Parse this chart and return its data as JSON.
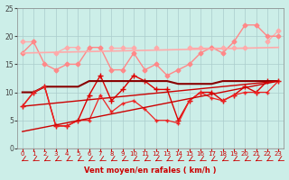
{
  "bg_color": "#cceee8",
  "grid_color": "#aacccc",
  "xlabel": "Vent moyen/en rafales ( km/h )",
  "xlabel_color": "#cc0000",
  "xlim": [
    -0.5,
    23.5
  ],
  "ylim": [
    0,
    25
  ],
  "xticks": [
    0,
    1,
    2,
    3,
    4,
    5,
    6,
    7,
    8,
    9,
    10,
    11,
    12,
    13,
    14,
    15,
    16,
    17,
    18,
    19,
    20,
    21,
    22,
    23
  ],
  "yticks": [
    0,
    5,
    10,
    15,
    20,
    25
  ],
  "series": [
    {
      "x": [
        0,
        1,
        2,
        3,
        4,
        5,
        6,
        7,
        8,
        9,
        10,
        11,
        12,
        13,
        14,
        15,
        16,
        17,
        18,
        19,
        20,
        21,
        22,
        23
      ],
      "y": [
        19,
        19,
        null,
        17,
        18,
        18,
        null,
        null,
        18,
        18,
        18,
        null,
        18,
        null,
        null,
        18,
        18,
        18,
        18,
        18,
        18,
        null,
        19,
        21
      ],
      "color": "#ffaaaa",
      "lw": 0.9,
      "marker": "D",
      "ms": 2.5
    },
    {
      "x": [
        0,
        1,
        2,
        3,
        4,
        5,
        6,
        7,
        8,
        9,
        10,
        11,
        12,
        13,
        14,
        15,
        16,
        17,
        18,
        19,
        20,
        21,
        22,
        23
      ],
      "y": [
        17,
        19,
        15,
        14,
        15,
        15,
        18,
        18,
        14,
        14,
        17,
        14,
        15,
        13,
        14,
        15,
        17,
        18,
        17,
        19,
        22,
        22,
        20,
        20
      ],
      "color": "#ff8888",
      "lw": 1.0,
      "marker": "D",
      "ms": 2.5
    },
    {
      "x": [
        0,
        23
      ],
      "y": [
        17,
        18
      ],
      "color": "#ffaaaa",
      "lw": 1.2,
      "marker": null,
      "ms": 0
    },
    {
      "x": [
        0,
        1,
        2,
        3,
        4,
        5,
        6,
        7,
        8,
        9,
        10,
        11,
        12,
        13,
        14,
        15,
        16,
        17,
        18,
        19,
        20,
        21,
        22,
        23
      ],
      "y": [
        7.5,
        10,
        11,
        4,
        4,
        5,
        9.5,
        13,
        8.5,
        10.5,
        13,
        12,
        10.5,
        10.5,
        5,
        8.5,
        10,
        10,
        8.5,
        9.5,
        11,
        10,
        12,
        12
      ],
      "color": "#dd0000",
      "lw": 1.0,
      "marker": "+",
      "ms": 4
    },
    {
      "x": [
        0,
        1,
        2,
        3,
        4,
        5,
        6,
        7,
        8,
        9,
        10,
        11,
        12,
        13,
        14,
        15,
        16,
        17,
        18,
        19,
        20,
        21,
        22,
        23
      ],
      "y": [
        10,
        10,
        11,
        11,
        11,
        11,
        12,
        12,
        12,
        12,
        12,
        12,
        12,
        12,
        11.5,
        11.5,
        11.5,
        11.5,
        12,
        12,
        12,
        12,
        12,
        12
      ],
      "color": "#880000",
      "lw": 1.5,
      "marker": null,
      "ms": 0
    },
    {
      "x": [
        0,
        23
      ],
      "y": [
        7.5,
        12
      ],
      "color": "#cc0000",
      "lw": 1.0,
      "marker": null,
      "ms": 0
    },
    {
      "x": [
        0,
        1,
        2,
        3,
        4,
        5,
        6,
        7,
        8,
        9,
        10,
        11,
        12,
        13,
        14,
        15,
        16,
        17,
        18,
        19,
        20,
        21,
        22,
        23
      ],
      "y": [
        7.5,
        10,
        11,
        4,
        4,
        5,
        5,
        9.5,
        6.5,
        8,
        8.5,
        7,
        5,
        5,
        4.5,
        8.5,
        10,
        9,
        8.5,
        9.5,
        10,
        10,
        10,
        12
      ],
      "color": "#ee2222",
      "lw": 0.9,
      "marker": "+",
      "ms": 3
    },
    {
      "x": [
        0,
        23
      ],
      "y": [
        3,
        12
      ],
      "color": "#cc0000",
      "lw": 1.0,
      "marker": null,
      "ms": 0
    }
  ],
  "arrows": true
}
